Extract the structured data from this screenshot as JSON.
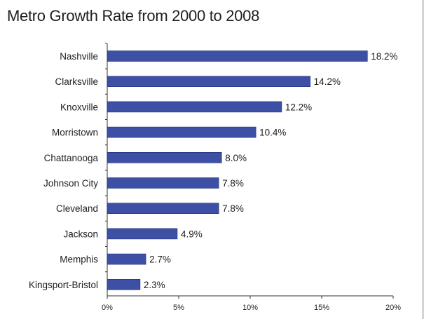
{
  "chart_data": {
    "type": "bar",
    "orientation": "horizontal",
    "title": "Metro Growth Rate from 2000 to 2008",
    "xlabel": "",
    "ylabel": "",
    "categories": [
      "Nashville",
      "Clarksville",
      "Knoxville",
      "Morristown",
      "Chattanooga",
      "Johnson City",
      "Cleveland",
      "Jackson",
      "Memphis",
      "Kingsport-Bristol"
    ],
    "values": [
      18.2,
      14.2,
      12.2,
      10.4,
      8.0,
      7.8,
      7.8,
      4.9,
      2.7,
      2.3
    ],
    "value_labels": [
      "18.2%",
      "14.2%",
      "12.2%",
      "10.4%",
      "8.0%",
      "7.8%",
      "7.8%",
      "4.9%",
      "2.7%",
      "2.3%"
    ],
    "xlim": [
      0,
      20
    ],
    "x_ticks": [
      0,
      5,
      10,
      15,
      20
    ],
    "x_tick_labels": [
      "0%",
      "5%",
      "10%",
      "15%",
      "20%"
    ],
    "grid": false,
    "legend": "none",
    "bar_color": "#3d50a6"
  }
}
